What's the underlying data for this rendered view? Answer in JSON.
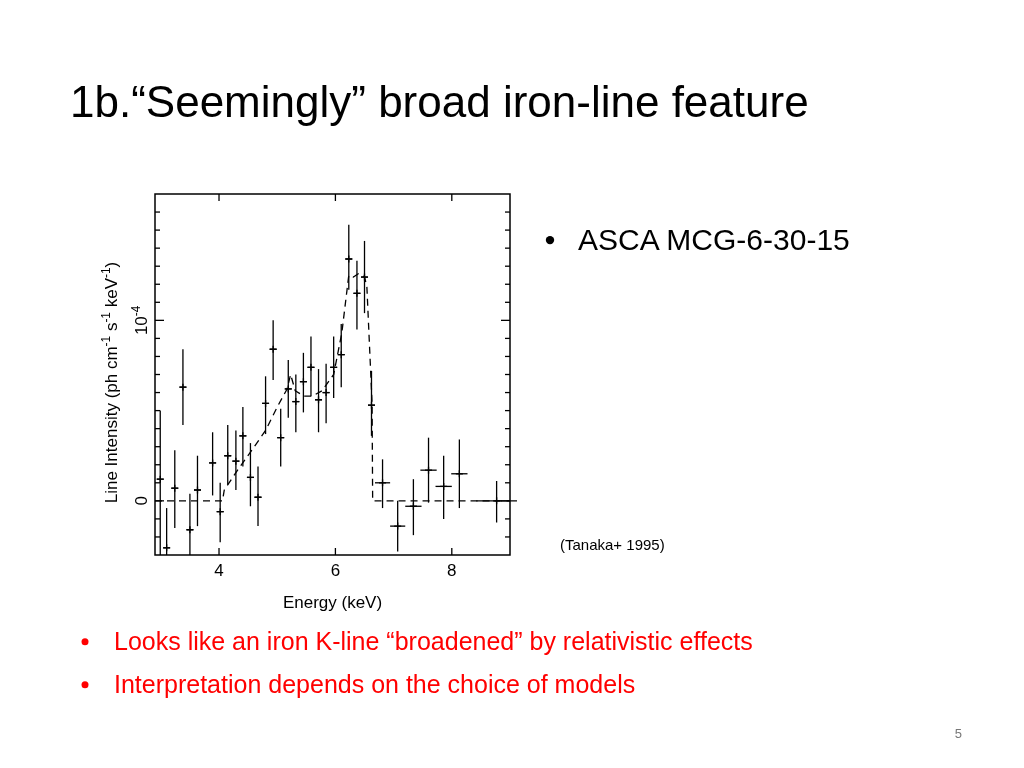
{
  "chart_data": {
    "type": "scatter",
    "title": "1b.“Seemingly” broad iron-line feature",
    "xlabel": "Energy (keV)",
    "ylabel": "Line Intensity (ph cm$^{-1}$ s$^{-1}$ keV$^{-1}$)",
    "xlim": [
      2.9,
      9
    ],
    "xticks": [
      4,
      6,
      8
    ],
    "ylim": [
      -3e-05,
      0.00017
    ],
    "yticks": [
      {
        "value": -2e-05,
        "label": null
      },
      {
        "value": -1e-05,
        "label": null
      },
      {
        "value": 0,
        "label": "0"
      },
      {
        "value": 1e-05,
        "label": null
      },
      {
        "value": 2e-05,
        "label": null
      },
      {
        "value": 3e-05,
        "label": null
      },
      {
        "value": 4e-05,
        "label": null
      },
      {
        "value": 5e-05,
        "label": null
      },
      {
        "value": 6e-05,
        "label": null
      },
      {
        "value": 7e-05,
        "label": null
      },
      {
        "value": 8e-05,
        "label": null
      },
      {
        "value": 9e-05,
        "label": null
      },
      {
        "value": 0.0001,
        "label": "10$^{-4}$"
      },
      {
        "value": 0.00011,
        "label": null
      },
      {
        "value": 0.00012,
        "label": null
      },
      {
        "value": 0.00013,
        "label": null
      },
      {
        "value": 0.00014,
        "label": null
      },
      {
        "value": 0.00015,
        "label": null
      },
      {
        "value": 0.00016,
        "label": null
      }
    ],
    "grid": false,
    "series": [
      {
        "color": "#000000",
        "marker": "cross",
        "x": [
          2.99,
          3.1,
          3.24,
          3.38,
          3.5,
          3.63,
          3.89,
          4.02,
          4.15,
          4.29,
          4.41,
          4.54,
          4.67,
          4.8,
          4.93,
          5.06,
          5.19,
          5.32,
          5.45,
          5.58,
          5.71,
          5.84,
          5.97,
          6.1,
          6.23,
          6.37,
          6.5,
          6.62,
          6.81,
          7.07,
          7.34,
          7.6,
          7.86,
          8.13,
          8.77
        ],
        "values": [
          1.2e-05,
          -2.6e-05,
          7e-06,
          6.3e-05,
          -1.6e-05,
          6e-06,
          2.1e-05,
          -6e-06,
          2.5e-05,
          2.2e-05,
          3.6e-05,
          1.3e-05,
          2e-06,
          5.4e-05,
          8.4e-05,
          3.5e-05,
          6.2e-05,
          5.5e-05,
          6.6e-05,
          7.4e-05,
          5.6e-05,
          6e-05,
          7.4e-05,
          8.1e-05,
          0.000134,
          0.000115,
          0.000124,
          5.3e-05,
          1e-05,
          -1.4e-05,
          -3e-06,
          1.7e-05,
          8e-06,
          1.5e-05,
          0
        ],
        "errors": [
          [
            -3e-05,
            5e-05
          ],
          [
            -3e-05,
            -4e-06
          ],
          [
            -1.5e-05,
            2.8e-05
          ],
          [
            4.2e-05,
            8.4e-05
          ],
          [
            -3e-05,
            4e-06
          ],
          [
            -1.4e-05,
            2.5e-05
          ],
          [
            3e-06,
            3.8e-05
          ],
          [
            -2.3e-05,
            1e-05
          ],
          [
            9e-06,
            4.2e-05
          ],
          [
            6e-06,
            3.9e-05
          ],
          [
            1.9e-05,
            5.2e-05
          ],
          [
            -3e-06,
            3.2e-05
          ],
          [
            -1.4e-05,
            1.9e-05
          ],
          [
            3.7e-05,
            6.9e-05
          ],
          [
            6.7e-05,
            0.0001
          ],
          [
            1.9e-05,
            5.1e-05
          ],
          [
            4.6e-05,
            7.8e-05
          ],
          [
            3.8e-05,
            7e-05
          ],
          [
            4.9e-05,
            8.2e-05
          ],
          [
            5.8e-05,
            9.1e-05
          ],
          [
            3.8e-05,
            7.3e-05
          ],
          [
            4.3e-05,
            7.6e-05
          ],
          [
            5.7e-05,
            9.1e-05
          ],
          [
            6.3e-05,
            9.8e-05
          ],
          [
            0.000117,
            0.000153
          ],
          [
            9.5e-05,
            0.000133
          ],
          [
            0.000104,
            0.000144
          ],
          [
            3.6e-05,
            7.2e-05
          ],
          [
            -4e-06,
            2.3e-05
          ],
          [
            -2.8e-05,
            0
          ],
          [
            -1.9e-05,
            1.2e-05
          ],
          [
            -1e-06,
            3.5e-05
          ],
          [
            -1e-05,
            2.5e-05
          ],
          [
            -4e-06,
            3.4e-05
          ],
          [
            -1.2e-05,
            1.1e-05
          ]
        ],
        "xerrors": [
          0.06,
          0.06,
          0.06,
          0.06,
          0.06,
          0.06,
          0.06,
          0.06,
          0.06,
          0.06,
          0.06,
          0.06,
          0.06,
          0.06,
          0.06,
          0.06,
          0.06,
          0.06,
          0.06,
          0.06,
          0.06,
          0.06,
          0.06,
          0.06,
          0.06,
          0.06,
          0.06,
          0.06,
          0.13,
          0.13,
          0.14,
          0.14,
          0.14,
          0.14,
          0.35
        ]
      },
      {
        "type": "line",
        "color": "#000000",
        "line_style": "dashed",
        "x": [
          2.9,
          4.06,
          4.09,
          4.34,
          4.54,
          4.8,
          5.0,
          5.17,
          5.23,
          5.31,
          5.46,
          5.6,
          5.77,
          5.97,
          6.11,
          6.23,
          6.31,
          6.4,
          6.5,
          6.54,
          6.63,
          6.64,
          9
        ],
        "values": [
          0,
          0,
          6e-06,
          1.8e-05,
          2.7e-05,
          3.9e-05,
          5.2e-05,
          6.2e-05,
          7e-05,
          6.1e-05,
          5.8e-05,
          5.8e-05,
          6.1e-05,
          7e-05,
          9.3e-05,
          0.000125,
          0.000124,
          0.000126,
          0.000124,
          0.000119,
          5.4e-05,
          0,
          0
        ]
      }
    ],
    "annotations": [
      "ASCA MCG-6-30-15",
      "(Tanaka+ 1995)",
      "Looks like an iron  K-line “broadened” by relativistic effects",
      "Interpretation depends on the choice of models",
      "5"
    ]
  }
}
